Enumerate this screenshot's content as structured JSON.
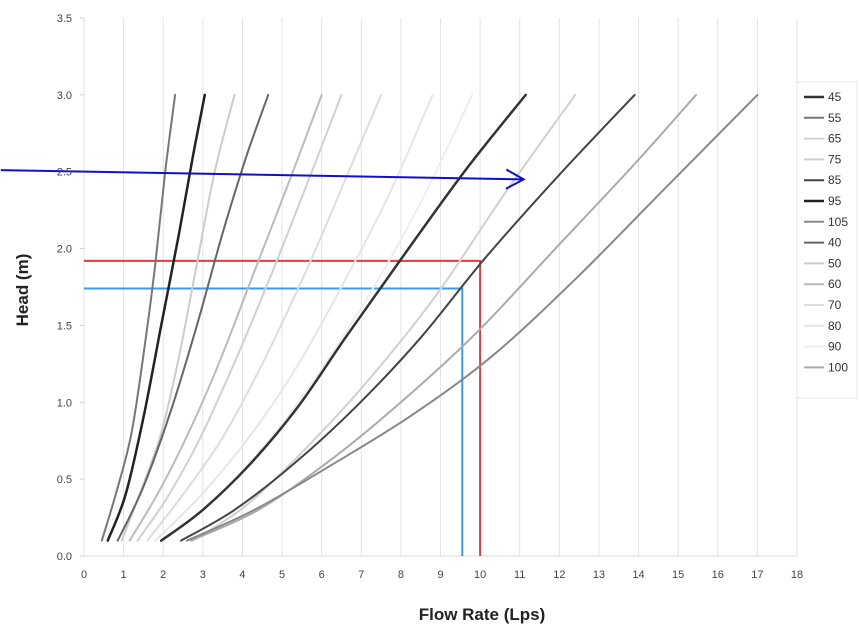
{
  "chart_data": {
    "type": "line",
    "title": "",
    "xlabel": "Flow Rate (Lps)",
    "ylabel": "Head (m)",
    "xlim": [
      0,
      18
    ],
    "ylim": [
      0,
      3.5
    ],
    "x_ticks": [
      "0",
      "1",
      "2",
      "3",
      "4",
      "5",
      "6",
      "7",
      "8",
      "9",
      "10",
      "11",
      "12",
      "13",
      "14",
      "15",
      "16",
      "17",
      "18"
    ],
    "y_ticks": [
      "0.0",
      "0.5",
      "1.0",
      "1.5",
      "2.0",
      "2.5",
      "3.0",
      "3.5"
    ],
    "grid": "vertical",
    "legend_position": "right",
    "series": [
      {
        "name": "45",
        "color": "#333333",
        "width": 2.5,
        "points": [
          [
            1.95,
            0.1
          ],
          [
            3.0,
            0.3
          ],
          [
            4.2,
            0.6
          ],
          [
            5.4,
            0.97
          ],
          [
            6.6,
            1.42
          ],
          [
            8.0,
            1.93
          ],
          [
            9.6,
            2.5
          ],
          [
            11.15,
            3.0
          ]
        ]
      },
      {
        "name": "55",
        "color": "#777777",
        "width": 2.0,
        "points": [
          [
            0.45,
            0.1
          ],
          [
            0.8,
            0.4
          ],
          [
            1.2,
            0.8
          ],
          [
            1.55,
            1.4
          ],
          [
            1.8,
            1.9
          ],
          [
            2.05,
            2.5
          ],
          [
            2.3,
            3.0
          ]
        ]
      },
      {
        "name": "65",
        "color": "#d0d0d0",
        "width": 2.0,
        "points": [
          [
            1.35,
            0.1
          ],
          [
            2.1,
            0.38
          ],
          [
            2.9,
            0.75
          ],
          [
            3.7,
            1.2
          ],
          [
            4.6,
            1.75
          ],
          [
            5.6,
            2.4
          ],
          [
            6.5,
            3.0
          ]
        ]
      },
      {
        "name": "75",
        "color": "#d0d0d0",
        "width": 2.0,
        "points": [
          [
            2.75,
            0.1
          ],
          [
            4.1,
            0.33
          ],
          [
            5.6,
            0.7
          ],
          [
            7.2,
            1.15
          ],
          [
            8.9,
            1.7
          ],
          [
            10.6,
            2.35
          ],
          [
            12.4,
            3.0
          ]
        ]
      },
      {
        "name": "85",
        "color": "#444444",
        "width": 2.0,
        "points": [
          [
            2.45,
            0.1
          ],
          [
            3.8,
            0.3
          ],
          [
            5.3,
            0.6
          ],
          [
            6.9,
            0.98
          ],
          [
            8.5,
            1.42
          ],
          [
            10.1,
            1.93
          ],
          [
            12.0,
            2.48
          ],
          [
            13.9,
            3.0
          ]
        ]
      },
      {
        "name": "95",
        "color": "#222222",
        "width": 2.5,
        "points": [
          [
            0.6,
            0.1
          ],
          [
            1.05,
            0.4
          ],
          [
            1.5,
            0.9
          ],
          [
            1.95,
            1.5
          ],
          [
            2.4,
            2.1
          ],
          [
            2.75,
            2.6
          ],
          [
            3.05,
            3.0
          ]
        ]
      },
      {
        "name": "105",
        "color": "#888888",
        "width": 2.0,
        "points": [
          [
            2.6,
            0.1
          ],
          [
            4.3,
            0.3
          ],
          [
            6.3,
            0.6
          ],
          [
            8.3,
            0.92
          ],
          [
            10.3,
            1.3
          ],
          [
            12.4,
            1.8
          ],
          [
            14.7,
            2.4
          ],
          [
            17.0,
            3.0
          ]
        ]
      },
      {
        "name": "40",
        "color": "#666666",
        "width": 2.0,
        "points": [
          [
            0.85,
            0.1
          ],
          [
            1.5,
            0.45
          ],
          [
            2.2,
            0.95
          ],
          [
            2.85,
            1.5
          ],
          [
            3.5,
            2.1
          ],
          [
            4.1,
            2.6
          ],
          [
            4.65,
            3.0
          ]
        ]
      },
      {
        "name": "50",
        "color": "#cccccc",
        "width": 2.0,
        "points": [
          [
            0.95,
            0.1
          ],
          [
            1.4,
            0.4
          ],
          [
            1.95,
            0.8
          ],
          [
            2.4,
            1.3
          ],
          [
            2.85,
            1.9
          ],
          [
            3.3,
            2.5
          ],
          [
            3.8,
            3.0
          ]
        ]
      },
      {
        "name": "60",
        "color": "#bbbbbb",
        "width": 2.0,
        "points": [
          [
            1.15,
            0.1
          ],
          [
            1.85,
            0.4
          ],
          [
            2.6,
            0.78
          ],
          [
            3.4,
            1.25
          ],
          [
            4.3,
            1.85
          ],
          [
            5.2,
            2.45
          ],
          [
            6.0,
            3.0
          ]
        ]
      },
      {
        "name": "70",
        "color": "#dddddd",
        "width": 2.0,
        "points": [
          [
            1.6,
            0.1
          ],
          [
            2.5,
            0.4
          ],
          [
            3.5,
            0.77
          ],
          [
            4.5,
            1.25
          ],
          [
            5.6,
            1.85
          ],
          [
            6.6,
            2.45
          ],
          [
            7.5,
            3.0
          ]
        ]
      },
      {
        "name": "80",
        "color": "#e6e6e6",
        "width": 2.0,
        "points": [
          [
            1.8,
            0.1
          ],
          [
            2.9,
            0.38
          ],
          [
            4.1,
            0.75
          ],
          [
            5.3,
            1.2
          ],
          [
            6.5,
            1.75
          ],
          [
            7.7,
            2.35
          ],
          [
            8.8,
            3.0
          ]
        ]
      },
      {
        "name": "90",
        "color": "#eeeeee",
        "width": 2.0,
        "points": [
          [
            2.0,
            0.1
          ],
          [
            3.3,
            0.37
          ],
          [
            4.6,
            0.73
          ],
          [
            5.9,
            1.18
          ],
          [
            7.2,
            1.7
          ],
          [
            8.5,
            2.3
          ],
          [
            9.8,
            3.0
          ]
        ]
      },
      {
        "name": "100",
        "color": "#aaaaaa",
        "width": 2.0,
        "points": [
          [
            2.7,
            0.1
          ],
          [
            4.4,
            0.3
          ],
          [
            6.2,
            0.62
          ],
          [
            8.0,
            1.0
          ],
          [
            9.9,
            1.45
          ],
          [
            11.9,
            2.0
          ],
          [
            13.9,
            2.55
          ],
          [
            15.45,
            3.0
          ]
        ]
      }
    ],
    "annotations": {
      "arrow": {
        "color": "#1010cc",
        "from": [
          -2.1,
          2.51
        ],
        "to": [
          11.1,
          2.45
        ]
      },
      "red_guide": {
        "color": "#e03c3c",
        "x": 10.0,
        "y": 1.92
      },
      "blue_guide": {
        "color": "#3a9be8",
        "x": 9.55,
        "y": 1.74
      }
    }
  }
}
